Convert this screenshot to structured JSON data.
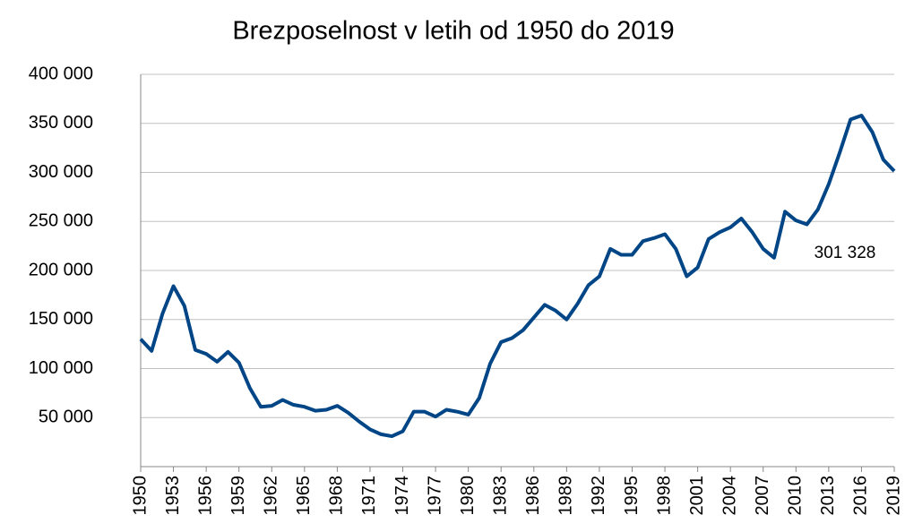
{
  "chart_data": {
    "type": "line",
    "title": "Brezposelnost v letih od 1950 do 2019",
    "x": [
      1950,
      1951,
      1952,
      1953,
      1954,
      1955,
      1956,
      1957,
      1958,
      1959,
      1960,
      1961,
      1962,
      1963,
      1964,
      1965,
      1966,
      1967,
      1968,
      1969,
      1970,
      1971,
      1972,
      1973,
      1974,
      1975,
      1976,
      1977,
      1978,
      1979,
      1980,
      1981,
      1982,
      1983,
      1984,
      1985,
      1986,
      1987,
      1988,
      1989,
      1990,
      1991,
      1992,
      1993,
      1994,
      1995,
      1996,
      1997,
      1998,
      1999,
      2000,
      2001,
      2002,
      2003,
      2004,
      2005,
      2006,
      2007,
      2008,
      2009,
      2010,
      2011,
      2012,
      2013,
      2014,
      2015,
      2016,
      2017,
      2018,
      2019
    ],
    "series": [
      {
        "color": "#004586",
        "values": [
          130000,
          118000,
          156000,
          184000,
          164000,
          119000,
          115000,
          107000,
          117000,
          106000,
          80000,
          61000,
          62000,
          68000,
          63000,
          61000,
          57000,
          58000,
          62000,
          55000,
          46000,
          38000,
          33000,
          31000,
          36000,
          56000,
          56000,
          51000,
          58000,
          56000,
          53000,
          70000,
          105000,
          127000,
          131000,
          139000,
          152000,
          165000,
          159000,
          150000,
          166000,
          185000,
          194000,
          222000,
          216000,
          216000,
          230000,
          233000,
          237000,
          222000,
          194000,
          203000,
          232000,
          239000,
          244000,
          253000,
          239000,
          222000,
          213000,
          260000,
          251000,
          247000,
          262000,
          288000,
          320000,
          354000,
          358000,
          341000,
          313000,
          301328
        ],
        "value_labels": [
          null,
          null,
          null,
          null,
          null,
          null,
          null,
          null,
          null,
          null,
          null,
          null,
          null,
          null,
          null,
          null,
          null,
          null,
          null,
          null,
          null,
          null,
          null,
          null,
          null,
          null,
          null,
          null,
          null,
          null,
          null,
          null,
          null,
          null,
          null,
          null,
          null,
          null,
          null,
          null,
          null,
          null,
          null,
          null,
          null,
          null,
          null,
          null,
          null,
          null,
          null,
          null,
          null,
          null,
          null,
          null,
          null,
          null,
          null,
          null,
          null,
          null,
          null,
          null,
          null,
          null,
          null,
          null,
          null,
          "301 328"
        ]
      }
    ],
    "xlim": [
      1950,
      2019
    ],
    "xticks": [
      1950,
      1953,
      1956,
      1959,
      1962,
      1965,
      1968,
      1971,
      1974,
      1977,
      1980,
      1983,
      1986,
      1989,
      1992,
      1995,
      1998,
      2001,
      2004,
      2007,
      2010,
      2013,
      2016,
      2019
    ],
    "ylim": [
      0,
      400000
    ],
    "yticks": [
      {
        "value": 50000,
        "label": "50 000"
      },
      {
        "value": 100000,
        "label": "100 000"
      },
      {
        "value": 150000,
        "label": "150 000"
      },
      {
        "value": 200000,
        "label": "200 000"
      },
      {
        "value": 250000,
        "label": "250 000"
      },
      {
        "value": 300000,
        "label": "300 000"
      },
      {
        "value": 350000,
        "label": "350 000"
      },
      {
        "value": 400000,
        "label": "400 000"
      }
    ],
    "grid": true
  }
}
